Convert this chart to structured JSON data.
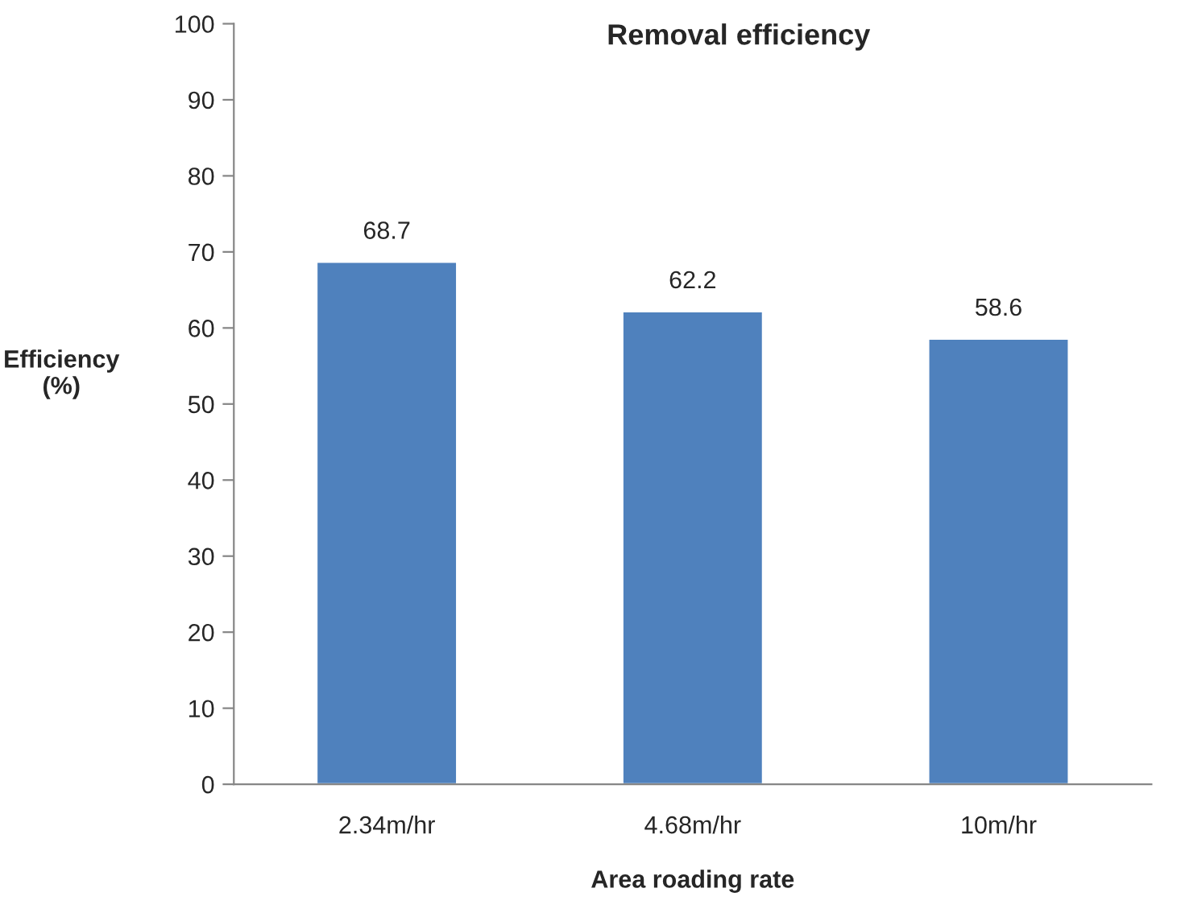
{
  "chart_data": {
    "type": "bar",
    "title": "Removal efficiency",
    "xlabel": "Area roading rate",
    "ylabel": "Efficiency\n(%)",
    "categories": [
      "2.34m/hr",
      "4.68m/hr",
      "10m/hr"
    ],
    "values": [
      68.7,
      62.2,
      58.6
    ],
    "color": "#4f81bd",
    "ylim": [
      0,
      100
    ],
    "yticks": [
      0,
      10,
      20,
      30,
      40,
      50,
      60,
      70,
      80,
      90,
      100
    ],
    "data_labels": true,
    "grid": false,
    "legend": false
  }
}
